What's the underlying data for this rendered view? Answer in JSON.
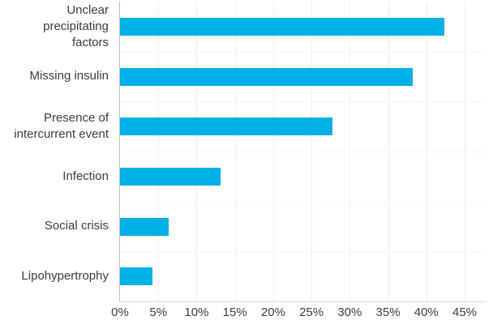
{
  "chart_data": {
    "type": "bar",
    "orientation": "horizontal",
    "categories": [
      "Unclear precipitating factors",
      "Missing insulin",
      "Presence of intercurrent event",
      "Infection",
      "Social crisis",
      "Lipohypertrophy"
    ],
    "category_label_lines": [
      [
        "Unclear precipitating",
        "factors"
      ],
      [
        "Missing insulin"
      ],
      [
        "Presence of",
        "intercurrent event"
      ],
      [
        "Infection"
      ],
      [
        "Social crisis"
      ],
      [
        "Lipohypertrophy"
      ]
    ],
    "values": [
      42.3,
      38.2,
      27.7,
      13.1,
      6.3,
      4.2
    ],
    "unit": "%",
    "xlabel": "",
    "ylabel": "",
    "xlim": [
      0,
      45
    ],
    "x_tick_values": [
      0,
      5,
      10,
      15,
      20,
      25,
      30,
      35,
      40,
      45
    ],
    "x_tick_labels": [
      "0%",
      "5%",
      "10%",
      "15%",
      "20%",
      "25%",
      "30%",
      "35%",
      "40%",
      "45%"
    ],
    "grid": true,
    "legend_position": "none",
    "bar_color": "#00b0e6"
  },
  "colors": {
    "bar": "#00b0e6",
    "axis_line_y": "#bfbfbf",
    "axis_line_x": "#d9d9d9",
    "gridline_vertical": "#efefef",
    "gridline_horizontal": "#f6f6f6",
    "text": "#3d3d3d",
    "background": "#ffffff"
  }
}
